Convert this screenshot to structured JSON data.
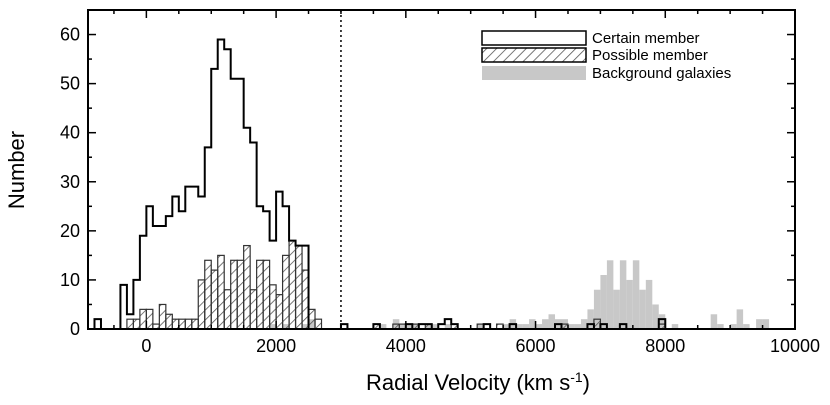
{
  "chart_data": {
    "type": "histogram",
    "title": "",
    "xlabel": "Radial Velocity (km s",
    "xlabel_sup": "-1",
    "xlabel_end": ")",
    "ylabel": "Number",
    "xlim": [
      -900,
      10000
    ],
    "ylim": [
      0,
      65
    ],
    "bin_width": 100,
    "xticks": [
      0,
      2000,
      4000,
      6000,
      8000,
      10000
    ],
    "xtick_labels": [
      "0",
      "2000",
      "4000",
      "6000",
      "8000",
      "10000"
    ],
    "yticks": [
      0,
      10,
      20,
      30,
      40,
      50,
      60
    ],
    "ytick_labels": [
      "0",
      "10",
      "20",
      "30",
      "40",
      "50",
      "60"
    ],
    "vline": 3000,
    "legend_position": "top-right",
    "legend": [
      {
        "label": "Certain member",
        "style": "outline"
      },
      {
        "label": "Possible member",
        "style": "hatched"
      },
      {
        "label": "Background galaxies",
        "style": "gray-fill"
      }
    ],
    "colors": {
      "line": "#000000",
      "background": "#c8c8c8",
      "hatch": "#555555"
    },
    "series": [
      {
        "name": "Certain member",
        "style": "outline",
        "bins": [
          [
            -800,
            2
          ],
          [
            -700,
            0
          ],
          [
            -600,
            0
          ],
          [
            -500,
            0
          ],
          [
            -400,
            9
          ],
          [
            -300,
            3
          ],
          [
            -200,
            10
          ],
          [
            -100,
            19
          ],
          [
            0,
            25
          ],
          [
            100,
            21
          ],
          [
            200,
            21
          ],
          [
            300,
            23
          ],
          [
            400,
            27
          ],
          [
            500,
            24
          ],
          [
            600,
            29
          ],
          [
            700,
            29
          ],
          [
            800,
            27
          ],
          [
            900,
            37
          ],
          [
            1000,
            53
          ],
          [
            1100,
            59
          ],
          [
            1200,
            57
          ],
          [
            1300,
            51
          ],
          [
            1400,
            51
          ],
          [
            1500,
            41
          ],
          [
            1600,
            38
          ],
          [
            1700,
            25
          ],
          [
            1800,
            24
          ],
          [
            1900,
            18
          ],
          [
            2000,
            28
          ],
          [
            2100,
            25
          ],
          [
            2200,
            18
          ],
          [
            2300,
            17
          ],
          [
            2400,
            17
          ],
          [
            2500,
            0
          ],
          [
            2600,
            0
          ],
          [
            2700,
            0
          ],
          [
            2800,
            0
          ],
          [
            2900,
            0
          ],
          [
            3000,
            1
          ],
          [
            3100,
            0
          ],
          [
            3200,
            0
          ],
          [
            3300,
            0
          ],
          [
            3400,
            0
          ],
          [
            3500,
            1
          ],
          [
            3600,
            0
          ],
          [
            3700,
            0
          ],
          [
            3800,
            0
          ],
          [
            3900,
            0
          ],
          [
            4000,
            1
          ],
          [
            4100,
            0
          ],
          [
            4200,
            1
          ],
          [
            4300,
            1
          ],
          [
            4400,
            0
          ],
          [
            4500,
            1
          ],
          [
            4600,
            2
          ],
          [
            4700,
            1
          ],
          [
            4800,
            0
          ],
          [
            4900,
            0
          ],
          [
            5000,
            0
          ],
          [
            5100,
            0
          ],
          [
            5200,
            1
          ],
          [
            5300,
            0
          ],
          [
            5400,
            0
          ],
          [
            5500,
            0
          ],
          [
            5600,
            1
          ],
          [
            5700,
            0
          ],
          [
            5800,
            0
          ],
          [
            5900,
            0
          ],
          [
            6000,
            0
          ],
          [
            6100,
            0
          ],
          [
            6200,
            0
          ],
          [
            6300,
            1
          ],
          [
            6400,
            0
          ],
          [
            6500,
            0
          ],
          [
            6600,
            0
          ],
          [
            6700,
            0
          ],
          [
            6800,
            1
          ],
          [
            6900,
            0
          ],
          [
            7000,
            1
          ],
          [
            7100,
            0
          ],
          [
            7200,
            0
          ],
          [
            7300,
            1
          ],
          [
            7400,
            0
          ],
          [
            7500,
            0
          ],
          [
            7600,
            0
          ],
          [
            7700,
            0
          ],
          [
            7800,
            0
          ],
          [
            7900,
            2
          ]
        ]
      },
      {
        "name": "Possible member",
        "style": "hatched",
        "bins": [
          [
            -800,
            0
          ],
          [
            -700,
            0
          ],
          [
            -600,
            0
          ],
          [
            -500,
            0
          ],
          [
            -400,
            0
          ],
          [
            -300,
            2
          ],
          [
            -200,
            2
          ],
          [
            -100,
            4
          ],
          [
            0,
            4
          ],
          [
            100,
            1
          ],
          [
            200,
            5
          ],
          [
            300,
            3
          ],
          [
            400,
            2
          ],
          [
            500,
            2
          ],
          [
            600,
            2
          ],
          [
            700,
            2
          ],
          [
            800,
            10
          ],
          [
            900,
            14
          ],
          [
            1000,
            12
          ],
          [
            1100,
            15
          ],
          [
            1200,
            8
          ],
          [
            1300,
            14
          ],
          [
            1400,
            14
          ],
          [
            1500,
            17
          ],
          [
            1600,
            8
          ],
          [
            1700,
            14
          ],
          [
            1800,
            14
          ],
          [
            1900,
            9
          ],
          [
            2000,
            7
          ],
          [
            2100,
            15
          ],
          [
            2200,
            18
          ],
          [
            2300,
            17
          ],
          [
            2400,
            12
          ],
          [
            2500,
            4
          ],
          [
            2600,
            2
          ],
          [
            2700,
            0
          ],
          [
            2800,
            0
          ],
          [
            2900,
            0
          ],
          [
            3000,
            0
          ],
          [
            3100,
            0
          ],
          [
            3200,
            0
          ],
          [
            3300,
            0
          ],
          [
            3400,
            0
          ],
          [
            3500,
            1
          ],
          [
            3600,
            0
          ],
          [
            3700,
            0
          ],
          [
            3800,
            1
          ],
          [
            3900,
            1
          ],
          [
            4000,
            0
          ],
          [
            4100,
            1
          ],
          [
            4200,
            0
          ],
          [
            4300,
            1
          ],
          [
            4400,
            0
          ],
          [
            4500,
            0
          ],
          [
            4600,
            0
          ],
          [
            4700,
            1
          ],
          [
            4800,
            0
          ],
          [
            4900,
            0
          ],
          [
            5000,
            0
          ],
          [
            5100,
            1
          ],
          [
            5200,
            0
          ],
          [
            5300,
            0
          ],
          [
            5400,
            1
          ],
          [
            5500,
            0
          ],
          [
            5600,
            0
          ],
          [
            5700,
            0
          ],
          [
            5800,
            0
          ],
          [
            5900,
            0
          ],
          [
            6000,
            0
          ],
          [
            6100,
            0
          ],
          [
            6200,
            0
          ],
          [
            6300,
            0
          ],
          [
            6400,
            1
          ],
          [
            6500,
            0
          ],
          [
            6600,
            0
          ],
          [
            6700,
            0
          ],
          [
            6800,
            0
          ],
          [
            6900,
            2
          ],
          [
            7000,
            0
          ],
          [
            7100,
            0
          ],
          [
            7200,
            0
          ],
          [
            7300,
            0
          ],
          [
            7400,
            0
          ],
          [
            7500,
            0
          ],
          [
            7600,
            0
          ],
          [
            7700,
            0
          ],
          [
            7800,
            0
          ],
          [
            7900,
            1
          ]
        ]
      },
      {
        "name": "Background galaxies",
        "style": "gray-fill",
        "bins": [
          [
            -800,
            0
          ],
          [
            -700,
            0
          ],
          [
            -600,
            0
          ],
          [
            -500,
            0
          ],
          [
            -400,
            0
          ],
          [
            -300,
            0
          ],
          [
            -200,
            0
          ],
          [
            -100,
            0
          ],
          [
            0,
            0
          ],
          [
            100,
            0
          ],
          [
            200,
            0
          ],
          [
            300,
            0
          ],
          [
            400,
            0
          ],
          [
            500,
            0
          ],
          [
            600,
            0
          ],
          [
            700,
            0
          ],
          [
            800,
            0
          ],
          [
            900,
            0
          ],
          [
            1000,
            0
          ],
          [
            1100,
            0
          ],
          [
            1200,
            0
          ],
          [
            1300,
            0
          ],
          [
            1400,
            0
          ],
          [
            1500,
            0
          ],
          [
            1600,
            0
          ],
          [
            1700,
            0
          ],
          [
            1800,
            0
          ],
          [
            1900,
            1
          ],
          [
            2000,
            0
          ],
          [
            2100,
            1
          ],
          [
            2200,
            0
          ],
          [
            2300,
            0
          ],
          [
            2400,
            1
          ],
          [
            2500,
            2
          ],
          [
            2600,
            0
          ],
          [
            2700,
            0
          ],
          [
            2800,
            0
          ],
          [
            2900,
            0
          ],
          [
            3000,
            0
          ],
          [
            3100,
            0
          ],
          [
            3200,
            0
          ],
          [
            3300,
            0
          ],
          [
            3400,
            0
          ],
          [
            3500,
            0
          ],
          [
            3600,
            1
          ],
          [
            3700,
            0
          ],
          [
            3800,
            2
          ],
          [
            3900,
            1
          ],
          [
            4000,
            1
          ],
          [
            4100,
            1
          ],
          [
            4200,
            0
          ],
          [
            4300,
            1
          ],
          [
            4400,
            1
          ],
          [
            4500,
            0
          ],
          [
            4600,
            1
          ],
          [
            4700,
            0
          ],
          [
            4800,
            0
          ],
          [
            4900,
            0
          ],
          [
            5000,
            0
          ],
          [
            5100,
            1
          ],
          [
            5200,
            0
          ],
          [
            5300,
            0
          ],
          [
            5400,
            0
          ],
          [
            5500,
            1
          ],
          [
            5600,
            2
          ],
          [
            5700,
            1
          ],
          [
            5800,
            1
          ],
          [
            5900,
            2
          ],
          [
            6000,
            1
          ],
          [
            6100,
            2
          ],
          [
            6200,
            3
          ],
          [
            6300,
            2
          ],
          [
            6400,
            2
          ],
          [
            6500,
            1
          ],
          [
            6600,
            1
          ],
          [
            6700,
            2
          ],
          [
            6800,
            4
          ],
          [
            6900,
            8
          ],
          [
            7000,
            11
          ],
          [
            7100,
            14
          ],
          [
            7200,
            8
          ],
          [
            7300,
            14
          ],
          [
            7400,
            10
          ],
          [
            7500,
            14
          ],
          [
            7600,
            8
          ],
          [
            7700,
            10
          ],
          [
            7800,
            5
          ],
          [
            7900,
            3
          ],
          [
            8000,
            0
          ],
          [
            8100,
            1
          ],
          [
            8200,
            0
          ],
          [
            8300,
            0
          ],
          [
            8400,
            0
          ],
          [
            8500,
            0
          ],
          [
            8600,
            0
          ],
          [
            8700,
            3
          ],
          [
            8800,
            1
          ],
          [
            8900,
            0
          ],
          [
            9000,
            1
          ],
          [
            9100,
            4
          ],
          [
            9200,
            1
          ],
          [
            9300,
            0
          ],
          [
            9400,
            2
          ],
          [
            9500,
            2
          ],
          [
            9600,
            0
          ],
          [
            9700,
            0
          ],
          [
            9800,
            0
          ],
          [
            9900,
            0
          ]
        ]
      }
    ]
  }
}
